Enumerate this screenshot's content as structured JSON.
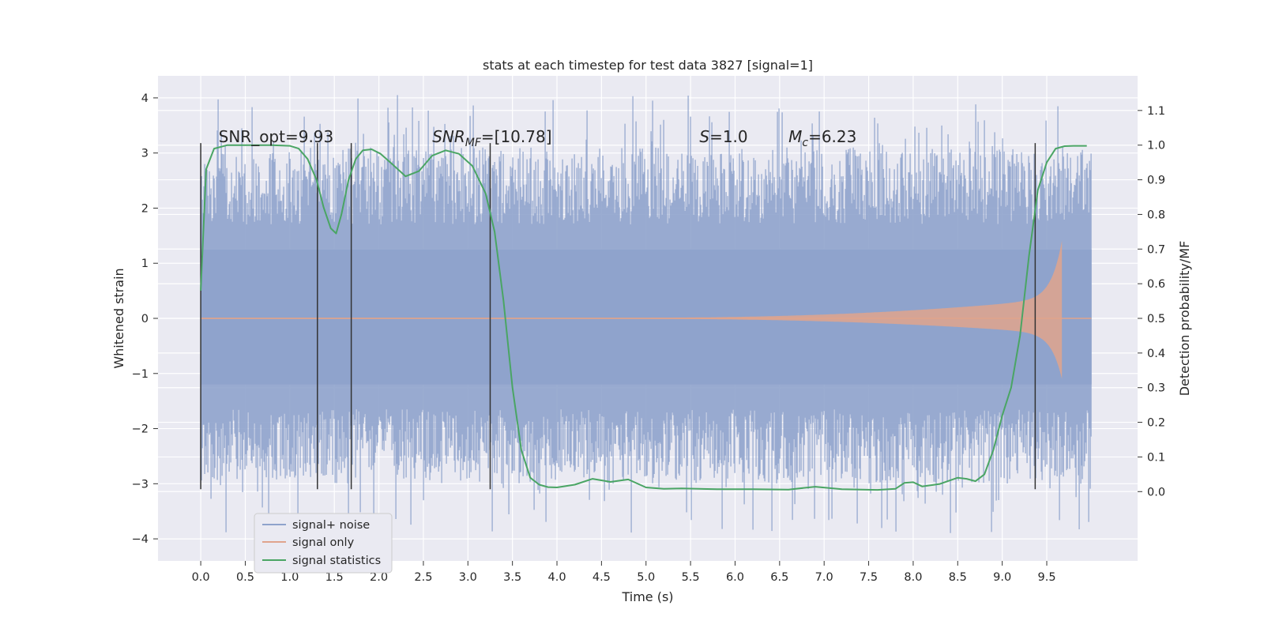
{
  "chart_data": {
    "type": "line",
    "title": "stats at each timestep for test data 3827 [signal=1]",
    "xlabel": "Time (s)",
    "ylabel": "Whitened strain",
    "y2label": "Detection probability/MF",
    "xlim": [
      -0.48,
      10.52
    ],
    "ylim": [
      -4.4,
      4.4
    ],
    "y2lim": [
      -0.2,
      1.2
    ],
    "x_ticks": [
      "0.0",
      "0.5",
      "1.0",
      "1.5",
      "2.0",
      "2.5",
      "3.0",
      "3.5",
      "4.0",
      "4.5",
      "5.0",
      "5.5",
      "6.0",
      "6.5",
      "7.0",
      "7.5",
      "8.0",
      "8.5",
      "9.0",
      "9.5"
    ],
    "y_ticks": [
      "4",
      "3",
      "2",
      "1",
      "0",
      "−1",
      "−2",
      "−3",
      "−4"
    ],
    "y2_ticks": [
      "1.1",
      "1.0",
      "0.9",
      "0.8",
      "0.7",
      "0.6",
      "0.5",
      "0.4",
      "0.3",
      "0.2",
      "0.1",
      "0.0"
    ],
    "grid": true,
    "legend_position": "lower-left",
    "colors": {
      "noise": "#8fa3cc",
      "signal": "#e0a48c",
      "stats": "#4aa564",
      "background": "#eaeaf2",
      "markers": "#333333"
    },
    "annotations": [
      {
        "label": "SNR_opt=9.93",
        "x": 0.2
      },
      {
        "label": "SNR_MF=[10.78]",
        "x": 2.6
      },
      {
        "label": "S=1.0",
        "x": 5.6
      },
      {
        "label": "M_c=6.23",
        "x": 6.6
      }
    ],
    "vertical_markers": [
      0.0,
      1.31,
      1.69,
      3.25,
      9.37
    ],
    "series": [
      {
        "name": "signal+ noise",
        "axis": "left",
        "x_range": [
          0.0,
          10.0
        ],
        "envelope": [
          -3.0,
          3.1
        ],
        "peak_max": 4.05,
        "peak_min": -3.95
      },
      {
        "name": "signal only",
        "axis": "left",
        "x_range": [
          0.0,
          9.67
        ],
        "chirp_start": 4.9,
        "max_amplitude": 1.4,
        "merger_time": 9.67
      },
      {
        "name": "signal statistics",
        "axis": "right",
        "x": [
          0.0,
          0.06,
          0.15,
          0.3,
          0.5,
          0.8,
          1.0,
          1.1,
          1.2,
          1.3,
          1.38,
          1.46,
          1.52,
          1.58,
          1.66,
          1.74,
          1.82,
          1.92,
          2.02,
          2.15,
          2.3,
          2.45,
          2.6,
          2.75,
          2.9,
          3.05,
          3.2,
          3.3,
          3.4,
          3.5,
          3.6,
          3.7,
          3.8,
          3.9,
          4.0,
          4.2,
          4.4,
          4.6,
          4.8,
          5.0,
          5.2,
          5.4,
          5.8,
          6.2,
          6.6,
          6.9,
          7.2,
          7.6,
          7.8,
          7.9,
          8.0,
          8.1,
          8.3,
          8.5,
          8.6,
          8.7,
          8.8,
          8.9,
          9.0,
          9.1,
          9.2,
          9.3,
          9.4,
          9.5,
          9.6,
          9.7,
          9.8,
          9.95
        ],
        "values": [
          0.58,
          0.93,
          0.99,
          1.0,
          1.0,
          1.0,
          0.998,
          0.99,
          0.96,
          0.9,
          0.82,
          0.76,
          0.745,
          0.8,
          0.9,
          0.96,
          0.985,
          0.988,
          0.975,
          0.945,
          0.91,
          0.925,
          0.97,
          0.985,
          0.975,
          0.94,
          0.86,
          0.75,
          0.55,
          0.3,
          0.12,
          0.04,
          0.02,
          0.013,
          0.012,
          0.02,
          0.037,
          0.028,
          0.035,
          0.012,
          0.008,
          0.009,
          0.007,
          0.007,
          0.006,
          0.014,
          0.007,
          0.005,
          0.008,
          0.025,
          0.027,
          0.015,
          0.022,
          0.04,
          0.037,
          0.03,
          0.05,
          0.12,
          0.22,
          0.3,
          0.45,
          0.68,
          0.87,
          0.95,
          0.99,
          0.997,
          0.998,
          0.998
        ]
      }
    ]
  }
}
